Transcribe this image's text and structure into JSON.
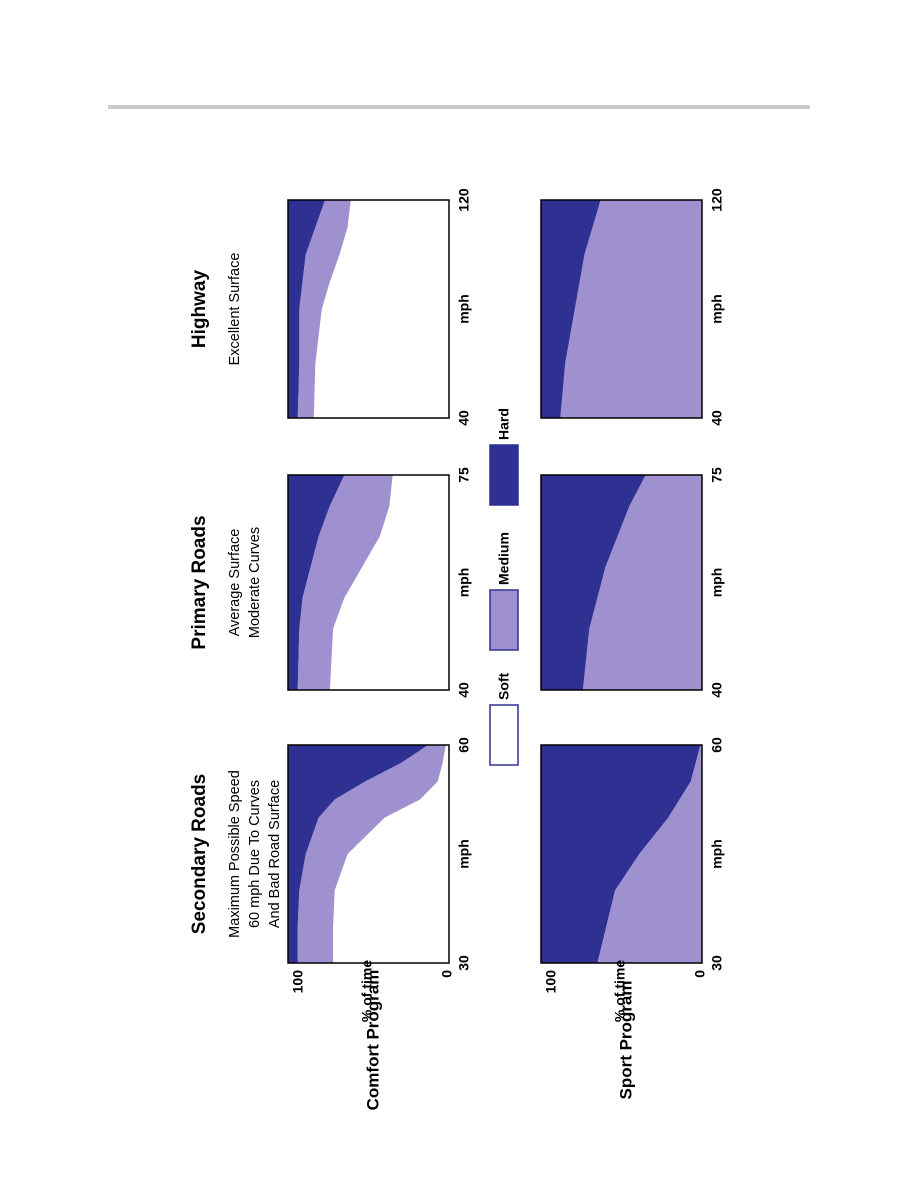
{
  "row_labels": [
    "Comfort Program",
    "Sport Program"
  ],
  "chart_data": [
    {
      "type": "stacked-area",
      "title": "Secondary Roads",
      "subtitle": [
        "Maximum Possible Speed",
        "60 mph Due To Curves",
        "And Bad Road Surface"
      ],
      "x": [
        30,
        35,
        40,
        45,
        50,
        52.5,
        55,
        57.5,
        60
      ],
      "xlim": [
        30,
        60
      ],
      "xticks": [
        30,
        60
      ],
      "xlabel": "mph",
      "ylim": [
        0,
        100
      ],
      "yticks": [
        0,
        100
      ],
      "ylabel": "% of time",
      "series": [
        {
          "name": "Soft",
          "color": "#ffffff",
          "values": [
            72,
            72,
            71,
            63,
            40,
            18,
            7,
            4,
            2
          ]
        },
        {
          "name": "Medium",
          "color": "#9f91d0",
          "values": [
            22,
            22,
            22,
            26,
            41,
            53,
            45,
            26,
            11
          ]
        },
        {
          "name": "Hard",
          "color": "#2e3192",
          "values": [
            6,
            6,
            7,
            11,
            19,
            29,
            48,
            70,
            87
          ]
        }
      ]
    },
    {
      "type": "stacked-area",
      "title": "Primary Roads",
      "subtitle": [
        "Average Surface",
        "Moderate Curves"
      ],
      "x": [
        40,
        50,
        55,
        60,
        65,
        70,
        75
      ],
      "xlim": [
        40,
        75
      ],
      "xticks": [
        40,
        75
      ],
      "xlabel": "mph",
      "ylim": [
        0,
        100
      ],
      "series": [
        {
          "name": "Soft",
          "color": "#ffffff",
          "values": [
            74,
            72,
            65,
            54,
            43,
            37,
            35
          ]
        },
        {
          "name": "Medium",
          "color": "#9f91d0",
          "values": [
            20,
            21,
            26,
            32,
            38,
            37,
            30
          ]
        },
        {
          "name": "Hard",
          "color": "#2e3192",
          "values": [
            6,
            7,
            9,
            14,
            19,
            26,
            35
          ]
        }
      ]
    },
    {
      "type": "stacked-area",
      "title": "Highway",
      "subtitle": [
        "Excellent Surface"
      ],
      "x": [
        40,
        60,
        80,
        90,
        100,
        110,
        120
      ],
      "xlim": [
        40,
        120
      ],
      "xticks": [
        40,
        120
      ],
      "xlabel": "mph",
      "ylim": [
        0,
        100
      ],
      "series": [
        {
          "name": "Soft",
          "color": "#ffffff",
          "values": [
            84,
            83,
            79,
            74,
            68,
            63,
            61
          ]
        },
        {
          "name": "Medium",
          "color": "#9f91d0",
          "values": [
            10,
            10,
            14,
            17,
            21,
            20,
            16
          ]
        },
        {
          "name": "Hard",
          "color": "#2e3192",
          "values": [
            6,
            7,
            7,
            9,
            11,
            17,
            23
          ]
        }
      ]
    },
    {
      "type": "stacked-area",
      "x": [
        30,
        40,
        45,
        50,
        55,
        60
      ],
      "xlim": [
        30,
        60
      ],
      "xticks": [
        30,
        60
      ],
      "xlabel": "mph",
      "ylim": [
        0,
        100
      ],
      "yticks": [
        0,
        100
      ],
      "ylabel": "% of time",
      "series": [
        {
          "name": "Soft",
          "color": "#ffffff",
          "values": [
            0,
            0,
            0,
            0,
            0,
            0
          ]
        },
        {
          "name": "Medium",
          "color": "#9f91d0",
          "values": [
            65,
            54,
            39,
            21,
            7,
            1
          ]
        },
        {
          "name": "Hard",
          "color": "#2e3192",
          "values": [
            35,
            46,
            61,
            79,
            93,
            99
          ]
        }
      ]
    },
    {
      "type": "stacked-area",
      "x": [
        40,
        50,
        60,
        70,
        75
      ],
      "xlim": [
        40,
        75
      ],
      "xticks": [
        40,
        75
      ],
      "xlabel": "mph",
      "ylim": [
        0,
        100
      ],
      "series": [
        {
          "name": "Soft",
          "color": "#ffffff",
          "values": [
            0,
            0,
            0,
            0,
            0
          ]
        },
        {
          "name": "Medium",
          "color": "#9f91d0",
          "values": [
            74,
            70,
            60,
            45,
            35
          ]
        },
        {
          "name": "Hard",
          "color": "#2e3192",
          "values": [
            26,
            30,
            40,
            55,
            65
          ]
        }
      ]
    },
    {
      "type": "stacked-area",
      "x": [
        40,
        60,
        80,
        100,
        120
      ],
      "xlim": [
        40,
        120
      ],
      "xticks": [
        40,
        120
      ],
      "xlabel": "mph",
      "ylim": [
        0,
        100
      ],
      "series": [
        {
          "name": "Soft",
          "color": "#ffffff",
          "values": [
            0,
            0,
            0,
            0,
            0
          ]
        },
        {
          "name": "Medium",
          "color": "#9f91d0",
          "values": [
            88,
            85,
            79,
            73,
            63
          ]
        },
        {
          "name": "Hard",
          "color": "#2e3192",
          "values": [
            12,
            15,
            21,
            27,
            37
          ]
        }
      ]
    }
  ]
}
